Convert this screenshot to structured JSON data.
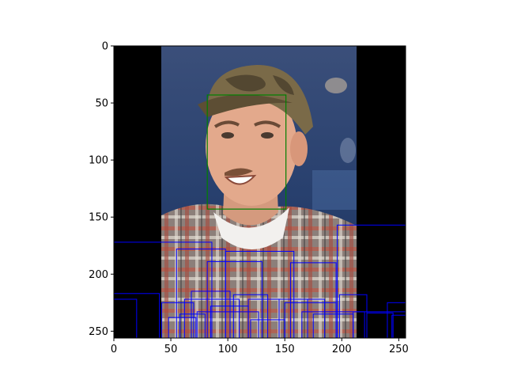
{
  "image": {
    "description_hidden": "",
    "colors": {
      "frame": "#000000",
      "face_box": "#008000",
      "object_boxes": "#0000ff",
      "pad": "#000000",
      "bg_blue": "#2a3f6f",
      "skin": "#e0a78a",
      "cap": "#7a6a4a",
      "shirt": "#7b6a64"
    }
  },
  "axes": {
    "x_ticks": [
      "0",
      "50",
      "100",
      "150",
      "200",
      "250"
    ],
    "y_ticks": [
      "0",
      "50",
      "100",
      "150",
      "200",
      "250"
    ],
    "xlim": [
      0,
      256
    ],
    "ylim": [
      256,
      0
    ]
  },
  "face_box": {
    "x0": 82,
    "y0": 43,
    "x1": 151,
    "y1": 143
  },
  "object_boxes": [
    [
      0,
      172,
      86,
      256
    ],
    [
      0,
      217,
      40,
      256
    ],
    [
      0,
      222,
      20,
      256
    ],
    [
      42,
      225,
      70,
      256
    ],
    [
      55,
      178,
      98,
      256
    ],
    [
      62,
      222,
      110,
      256
    ],
    [
      68,
      215,
      102,
      256
    ],
    [
      73,
      233,
      127,
      256
    ],
    [
      82,
      189,
      130,
      256
    ],
    [
      98,
      180,
      158,
      256
    ],
    [
      105,
      218,
      135,
      256
    ],
    [
      118,
      222,
      170,
      256
    ],
    [
      145,
      222,
      185,
      256
    ],
    [
      150,
      225,
      195,
      256
    ],
    [
      165,
      233,
      220,
      256
    ],
    [
      175,
      235,
      210,
      256
    ],
    [
      196,
      157,
      256,
      256
    ],
    [
      198,
      218,
      222,
      256
    ],
    [
      210,
      233,
      256,
      256
    ],
    [
      222,
      234,
      245,
      256
    ],
    [
      240,
      225,
      256,
      256
    ],
    [
      244,
      236,
      256,
      256
    ],
    [
      48,
      238,
      72,
      256
    ],
    [
      58,
      235,
      80,
      256
    ],
    [
      85,
      228,
      118,
      256
    ],
    [
      120,
      240,
      150,
      256
    ],
    [
      155,
      190,
      195,
      256
    ]
  ]
}
